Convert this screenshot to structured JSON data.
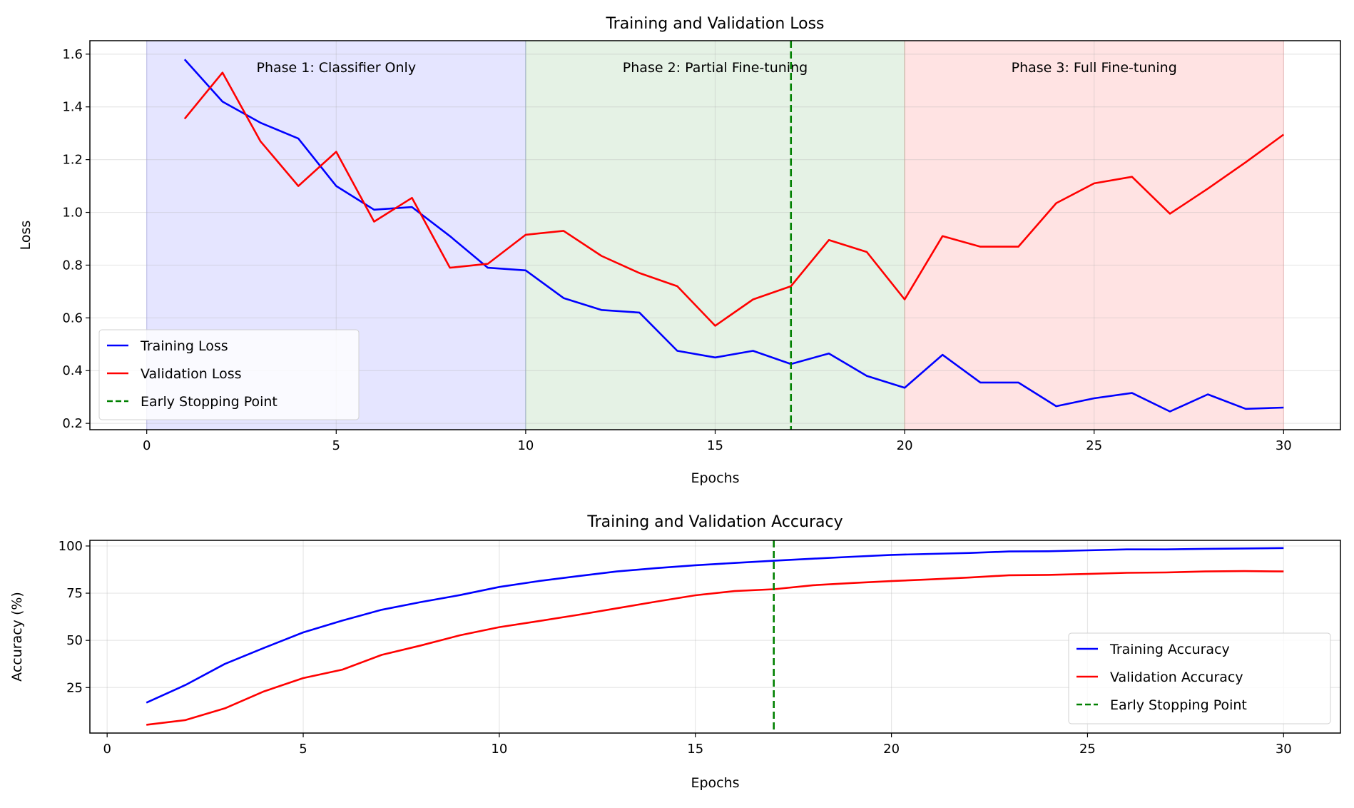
{
  "chart_data": [
    {
      "type": "line",
      "title": "Training and Validation Loss",
      "xlabel": "Epochs",
      "ylabel": "Loss",
      "xlim": [
        -1.5,
        31.5
      ],
      "ylim": [
        0.176,
        1.651
      ],
      "xticks": [
        0,
        5,
        10,
        15,
        20,
        25,
        30
      ],
      "yticks": [
        0.2,
        0.4,
        0.6,
        0.8,
        1.0,
        1.2,
        1.4,
        1.6
      ],
      "ytick_labels": [
        "0.2",
        "0.4",
        "0.6",
        "0.8",
        "1.0",
        "1.2",
        "1.4",
        "1.6"
      ],
      "grid": true,
      "legend_position": "lower-left",
      "x": [
        1,
        2,
        3,
        4,
        5,
        6,
        7,
        8,
        9,
        10,
        11,
        12,
        13,
        14,
        15,
        16,
        17,
        18,
        19,
        20,
        21,
        22,
        23,
        24,
        25,
        26,
        27,
        28,
        29,
        30
      ],
      "series": [
        {
          "name": "Training Loss",
          "color": "#0000ff",
          "values": [
            1.58,
            1.42,
            1.34,
            1.28,
            1.1,
            1.01,
            1.02,
            0.91,
            0.79,
            0.78,
            0.675,
            0.63,
            0.62,
            0.475,
            0.45,
            0.475,
            0.425,
            0.465,
            0.38,
            0.335,
            0.46,
            0.355,
            0.355,
            0.265,
            0.295,
            0.315,
            0.245,
            0.31,
            0.255,
            0.26
          ]
        },
        {
          "name": "Validation Loss",
          "color": "#ff0000",
          "values": [
            1.355,
            1.53,
            1.27,
            1.1,
            1.23,
            0.965,
            1.055,
            0.79,
            0.805,
            0.915,
            0.93,
            0.835,
            0.77,
            0.72,
            0.57,
            0.67,
            0.72,
            0.895,
            0.85,
            0.67,
            0.91,
            0.87,
            0.87,
            1.035,
            1.11,
            1.135,
            0.995,
            1.09,
            1.19,
            1.295
          ]
        }
      ],
      "early_stopping": {
        "name": "Early Stopping Point",
        "epoch": 17,
        "color": "#008000"
      },
      "phases": [
        {
          "label": "Phase 1: Classifier Only",
          "start": 0,
          "end": 10,
          "color": "#0000ff",
          "opacity": 0.1
        },
        {
          "label": "Phase 2: Partial Fine-tuning",
          "start": 10,
          "end": 20,
          "color": "#008000",
          "opacity": 0.1
        },
        {
          "label": "Phase 3: Full Fine-tuning",
          "start": 20,
          "end": 30,
          "color": "#ff0000",
          "opacity": 0.11
        }
      ]
    },
    {
      "type": "line",
      "title": "Training and Validation Accuracy",
      "xlabel": "Epochs",
      "ylabel": "Accuracy (%)",
      "xlim": [
        -0.44,
        31.45
      ],
      "ylim": [
        0.9,
        103
      ],
      "xticks": [
        0,
        5,
        10,
        15,
        20,
        25,
        30
      ],
      "yticks": [
        25,
        50,
        75,
        100
      ],
      "ytick_labels": [
        "25",
        "50",
        "75",
        "100"
      ],
      "grid": true,
      "legend_position": "lower-right",
      "x": [
        1,
        2,
        3,
        4,
        5,
        6,
        7,
        8,
        9,
        10,
        11,
        12,
        13,
        14,
        15,
        16,
        17,
        18,
        19,
        20,
        21,
        22,
        23,
        24,
        25,
        26,
        27,
        28,
        29,
        30
      ],
      "series": [
        {
          "name": "Training Accuracy",
          "color": "#0000ff",
          "values": [
            17,
            26.4,
            37.5,
            46,
            54.2,
            60.5,
            66.2,
            70.3,
            74,
            78.3,
            81.4,
            84,
            86.5,
            88.3,
            89.8,
            91,
            92.2,
            93.3,
            94.3,
            95.3,
            95.8,
            96.3,
            97.1,
            97.2,
            97.7,
            98.2,
            98.2,
            98.5,
            98.7,
            98.9
          ]
        },
        {
          "name": "Validation Accuracy",
          "color": "#ff0000",
          "values": [
            5.3,
            7.8,
            14,
            23,
            30,
            34.5,
            42.3,
            47.3,
            52.7,
            57,
            60.2,
            63.5,
            67,
            70.5,
            73.9,
            76.1,
            77.1,
            79.2,
            80.4,
            81.4,
            82.3,
            83.3,
            84.5,
            84.7,
            85.2,
            85.8,
            86,
            86.5,
            86.7,
            86.5
          ]
        }
      ],
      "early_stopping": {
        "name": "Early Stopping Point",
        "epoch": 17,
        "color": "#008000"
      }
    }
  ]
}
